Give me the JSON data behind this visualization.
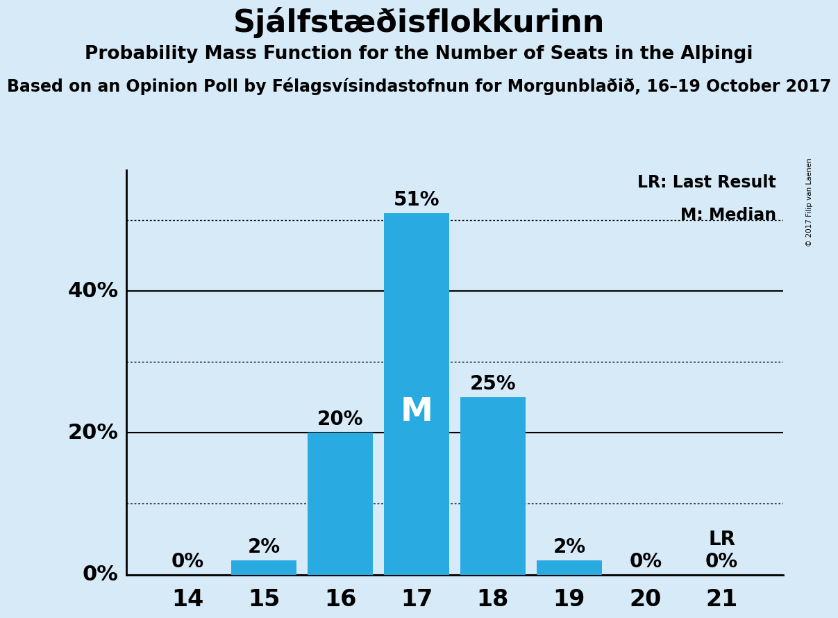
{
  "title": "Sjálfstæðisflokkurinn",
  "subtitle": "Probability Mass Function for the Number of Seats in the Alþingi",
  "source_line": "Based on an Opinion Poll by Félagsvísindastofnun for Morgunblaðið, 16–19 October 2017",
  "copyright": "© 2017 Filip van Laenen",
  "seats": [
    14,
    15,
    16,
    17,
    18,
    19,
    20,
    21
  ],
  "probabilities": [
    0,
    2,
    20,
    51,
    25,
    2,
    0,
    0
  ],
  "bar_color": "#29ABE2",
  "background_color": "#D6EAF8",
  "median_seat": 17,
  "last_result_seat": 21,
  "solid_lines": [
    0,
    20,
    40
  ],
  "solid_line_labels": [
    "",
    "20%",
    "40%"
  ],
  "dotted_lines": [
    10,
    30,
    50
  ],
  "ylim": [
    0,
    57
  ],
  "legend_lr": "LR: Last Result",
  "legend_m": "M: Median",
  "title_fontsize": 32,
  "subtitle_fontsize": 19,
  "source_fontsize": 17,
  "bar_label_fontsize": 20,
  "ytick_fontsize": 22,
  "xtick_fontsize": 24,
  "legend_fontsize": 17,
  "median_fontsize": 34
}
